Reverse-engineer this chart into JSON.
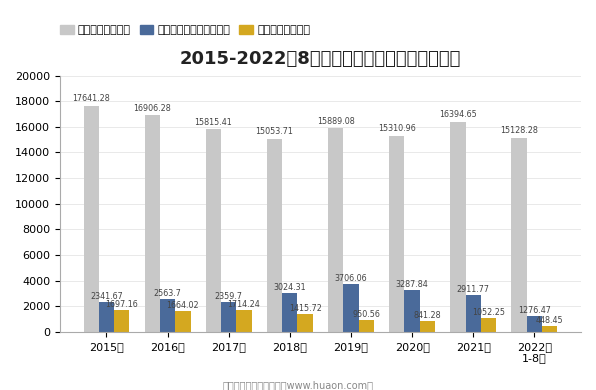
{
  "title": "2015-2022年8月内蒙古房地产施工及竣工面积",
  "categories": [
    "2015年",
    "2016年",
    "2017年",
    "2018年",
    "2019年",
    "2020年",
    "2021年",
    "2022年\n1-8月"
  ],
  "series1_label": "施工面积（万㎡）",
  "series2_label": "新开工施工面积（万㎡）",
  "series3_label": "竣工面积（万㎡）",
  "series1_values": [
    17641.28,
    16906.28,
    15815.41,
    15053.71,
    15889.08,
    15310.96,
    16394.65,
    15128.28
  ],
  "series2_values": [
    2341.67,
    2563.7,
    2359.7,
    3024.31,
    3706.06,
    3287.84,
    2911.77,
    1276.47
  ],
  "series3_values": [
    1697.16,
    1664.02,
    1714.24,
    1415.72,
    950.56,
    841.28,
    1052.25,
    448.45
  ],
  "series1_color": "#c8c8c8",
  "series2_color": "#4a6a9a",
  "series3_color": "#d4a820",
  "ylim": [
    0,
    20000
  ],
  "yticks": [
    0,
    2000,
    4000,
    6000,
    8000,
    10000,
    12000,
    14000,
    16000,
    18000,
    20000
  ],
  "footer": "制图：华经产业研究院（www.huaon.com）",
  "bg_color": "#ffffff",
  "value_fontsize": 5.8,
  "title_fontsize": 13,
  "legend_fontsize": 8,
  "tick_fontsize": 8
}
